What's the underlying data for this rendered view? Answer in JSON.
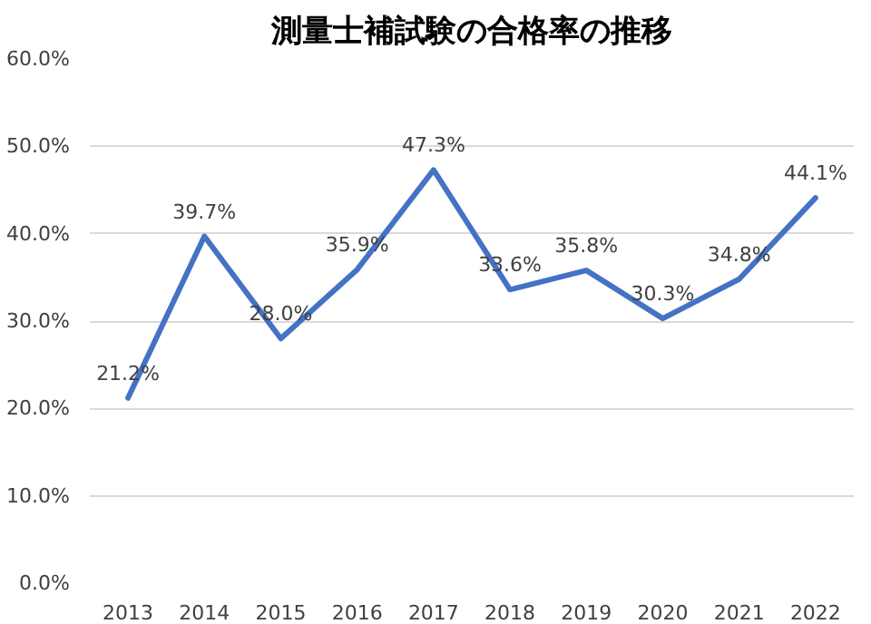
{
  "chart_data": {
    "type": "line",
    "title": "測量士補試験の合格率の推移",
    "categories": [
      "2013",
      "2014",
      "2015",
      "2016",
      "2017",
      "2018",
      "2019",
      "2020",
      "2021",
      "2022"
    ],
    "values": [
      21.2,
      39.7,
      28.0,
      35.9,
      47.3,
      33.6,
      35.8,
      30.3,
      34.8,
      44.1
    ],
    "value_labels": [
      "21.2%",
      "39.7%",
      "28.0%",
      "35.9%",
      "47.3%",
      "33.6%",
      "35.8%",
      "30.3%",
      "34.8%",
      "44.1%"
    ],
    "color": "#4472c4",
    "line_style": "solid",
    "ylim": [
      0,
      60
    ],
    "yticks": [
      {
        "value": 0,
        "label": "0.0%"
      },
      {
        "value": 10,
        "label": "10.0%"
      },
      {
        "value": 20,
        "label": "20.0%"
      },
      {
        "value": 30,
        "label": "30.0%"
      },
      {
        "value": 40,
        "label": "40.0%"
      },
      {
        "value": 50,
        "label": "50.0%"
      },
      {
        "value": 60,
        "label": "60.0%"
      }
    ],
    "grid": "y"
  }
}
